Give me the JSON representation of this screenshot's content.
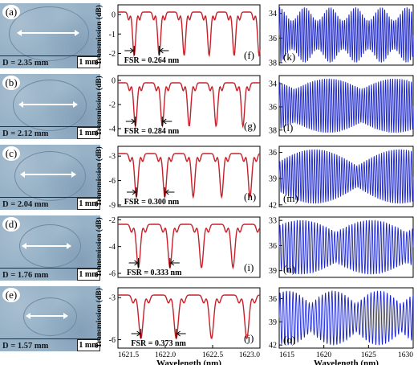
{
  "panels": [
    {
      "letter": "(a)",
      "diameter": "D = 2.35 mm",
      "scale": "1 mm",
      "spec_letter": "(f)",
      "fsr": "FSR = 0.264 nm",
      "wide_letter": "(k)"
    },
    {
      "letter": "(b)",
      "diameter": "D = 2.12 mm",
      "scale": "1 mm",
      "spec_letter": "(g)",
      "fsr": "FSR = 0.284 nm",
      "wide_letter": "(l)"
    },
    {
      "letter": "(c)",
      "diameter": "D = 2.04 mm",
      "scale": "1 mm",
      "spec_letter": "(h)",
      "fsr": "FSR = 0.300 nm",
      "wide_letter": "(m)"
    },
    {
      "letter": "(d)",
      "diameter": "D = 1.76 mm",
      "scale": "1 mm",
      "spec_letter": "(i)",
      "fsr": "FSR = 0.333 nm",
      "wide_letter": "(n)"
    },
    {
      "letter": "(e)",
      "diameter": "D = 1.57 mm",
      "scale": "1 mm",
      "spec_letter": "(j)",
      "fsr": "FSR = 0.373 nm",
      "wide_letter": "(o)"
    }
  ],
  "chart_data": [
    {
      "type": "line",
      "panel": "(f)",
      "ylabel": "Transmission (dB)",
      "xlim": [
        1621.5,
        1623.0
      ],
      "ylim": [
        -2.6,
        0.5
      ],
      "yticks": [
        0,
        -1,
        -2
      ],
      "yticklabels": [
        "0",
        "-1",
        "-2"
      ],
      "fsr_nm": 0.264,
      "series_color": "#c8202a"
    },
    {
      "type": "line",
      "panel": "(g)",
      "ylabel": "Transmission (dB)",
      "xlim": [
        1621.5,
        1623.0
      ],
      "ylim": [
        -4.6,
        0.4
      ],
      "yticks": [
        0,
        -2,
        -4
      ],
      "yticklabels": [
        "0",
        "-2",
        "-4"
      ],
      "fsr_nm": 0.284,
      "series_color": "#c8202a"
    },
    {
      "type": "line",
      "panel": "(h)",
      "ylabel": "Transmission (dB)",
      "xlim": [
        1621.5,
        1623.0
      ],
      "ylim": [
        -9.2,
        -1.8
      ],
      "yticks": [
        -3,
        -6,
        -9
      ],
      "yticklabels": [
        "-3",
        "-6",
        "-9"
      ],
      "fsr_nm": 0.3,
      "series_color": "#c8202a"
    },
    {
      "type": "line",
      "panel": "(i)",
      "ylabel": "Transmission (dB)",
      "xlim": [
        1621.5,
        1623.0
      ],
      "ylim": [
        -6.3,
        -1.8
      ],
      "yticks": [
        -2,
        -4,
        -6
      ],
      "yticklabels": [
        "-2",
        "-4",
        "-6"
      ],
      "fsr_nm": 0.333,
      "series_color": "#c8202a"
    },
    {
      "type": "line",
      "panel": "(j)",
      "ylabel": "Transmission (dB)",
      "xlabel": "Wavelength (nm)",
      "xlim": [
        1621.5,
        1623.0
      ],
      "ylim": [
        -6.6,
        -2.3
      ],
      "yticks": [
        -3,
        -6
      ],
      "yticklabels": [
        "-3",
        "-6"
      ],
      "xticks": [
        1621.5,
        1622.0,
        1622.5,
        1623.0
      ],
      "xticklabels": [
        "1621.5",
        "1622.0",
        "1622.5",
        "1623.0"
      ],
      "fsr_nm": 0.373,
      "series_color": "#c8202a"
    },
    {
      "type": "line",
      "panel": "(k)",
      "xlim": [
        1615,
        1630
      ],
      "ylim": [
        -38.2,
        -33.3
      ],
      "yticks": [
        -34,
        -36,
        -38
      ],
      "yticklabels": [
        "34",
        "36",
        "38"
      ],
      "series_color": "#1a24c8"
    },
    {
      "type": "line",
      "panel": "(l)",
      "xlim": [
        1615,
        1630
      ],
      "ylim": [
        -38.5,
        -33.3
      ],
      "yticks": [
        -34,
        -36,
        -38
      ],
      "yticklabels": [
        "34",
        "36",
        "38"
      ],
      "series_color": "#1a24c8"
    },
    {
      "type": "line",
      "panel": "(m)",
      "xlim": [
        1615,
        1630
      ],
      "ylim": [
        -42.2,
        -35.3
      ],
      "yticks": [
        -36,
        -39,
        -42
      ],
      "yticklabels": [
        "36",
        "39",
        "42"
      ],
      "series_color": "#1a24c8"
    },
    {
      "type": "line",
      "panel": "(n)",
      "xlim": [
        1615,
        1630
      ],
      "ylim": [
        -39.8,
        -32.6
      ],
      "yticks": [
        -33,
        -36,
        -39
      ],
      "yticklabels": [
        "33",
        "36",
        "39"
      ],
      "series_color": "#1a24c8"
    },
    {
      "type": "line",
      "panel": "(o)",
      "xlabel": "Wavelength (nm)",
      "xlim": [
        1615,
        1630
      ],
      "ylim": [
        -42.4,
        -34.6
      ],
      "yticks": [
        -36,
        -39,
        -42
      ],
      "yticklabels": [
        "36",
        "39",
        "42"
      ],
      "xticks": [
        1615,
        1620,
        1625,
        1630
      ],
      "xticklabels": [
        "1615",
        "1620",
        "1625",
        "1630"
      ],
      "series_color": "#1a24c8"
    }
  ]
}
